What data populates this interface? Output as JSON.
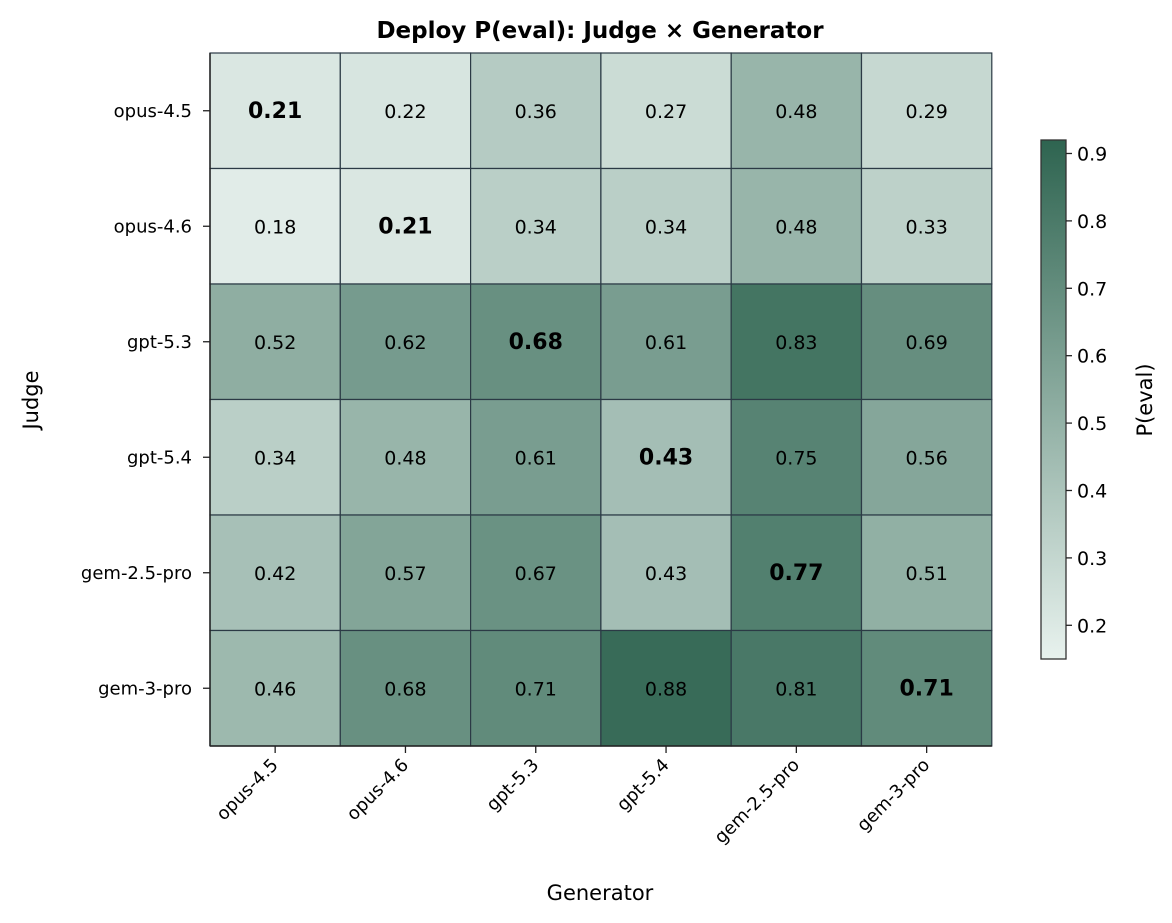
{
  "chart_data": {
    "type": "heatmap",
    "title": "Deploy P(eval): Judge × Generator",
    "xlabel": "Generator",
    "ylabel": "Judge",
    "colorbar_label": "P(eval)",
    "x_categories": [
      "opus-4.5",
      "opus-4.6",
      "gpt-5.3",
      "gpt-5.4",
      "gem-2.5-pro",
      "gem-3-pro"
    ],
    "y_categories": [
      "opus-4.5",
      "opus-4.6",
      "gpt-5.3",
      "gpt-5.4",
      "gem-2.5-pro",
      "gem-3-pro"
    ],
    "values": [
      [
        0.21,
        0.22,
        0.36,
        0.27,
        0.48,
        0.29
      ],
      [
        0.18,
        0.21,
        0.34,
        0.34,
        0.48,
        0.33
      ],
      [
        0.52,
        0.62,
        0.68,
        0.61,
        0.83,
        0.69
      ],
      [
        0.34,
        0.48,
        0.61,
        0.43,
        0.75,
        0.56
      ],
      [
        0.42,
        0.57,
        0.67,
        0.43,
        0.77,
        0.51
      ],
      [
        0.46,
        0.68,
        0.71,
        0.88,
        0.81,
        0.71
      ]
    ],
    "bold_diagonal": true,
    "color_range": [
      0.15,
      0.92
    ],
    "colorbar_ticks": [
      "0.2",
      "0.3",
      "0.4",
      "0.5",
      "0.6",
      "0.7",
      "0.8",
      "0.9"
    ],
    "colors": {
      "low": "#e8f2ee",
      "high": "#2e6450",
      "grid": "#2b3a45"
    }
  }
}
